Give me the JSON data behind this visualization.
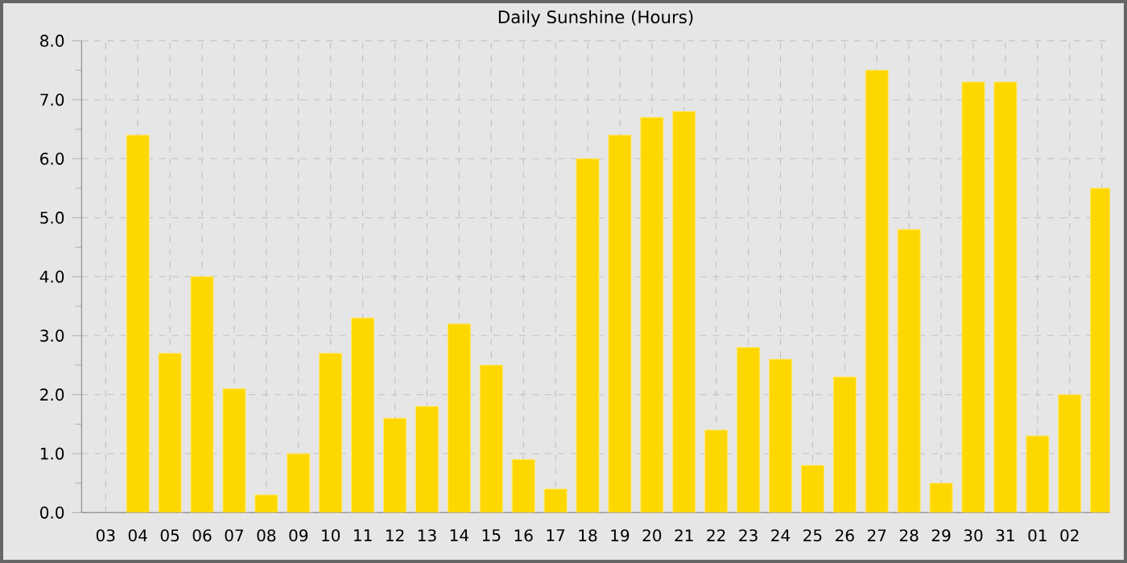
{
  "chart_data": {
    "type": "bar",
    "title": "Daily Sunshine (Hours)",
    "categories": [
      "03",
      "04",
      "05",
      "06",
      "07",
      "08",
      "09",
      "10",
      "11",
      "12",
      "13",
      "14",
      "15",
      "16",
      "17",
      "18",
      "19",
      "20",
      "21",
      "22",
      "23",
      "24",
      "25",
      "26",
      "27",
      "28",
      "29",
      "30",
      "31",
      "01",
      "02",
      null
    ],
    "values": [
      null,
      6.4,
      2.7,
      4.0,
      2.1,
      0.3,
      1.0,
      2.7,
      3.3,
      1.6,
      1.8,
      3.2,
      2.5,
      0.9,
      0.4,
      6.0,
      6.4,
      6.7,
      6.8,
      1.4,
      2.8,
      2.6,
      0.8,
      2.3,
      7.5,
      4.8,
      0.5,
      7.3,
      7.3,
      1.3,
      2.0,
      5.5
    ],
    "color": "#ffd700",
    "ylim": [
      0,
      8
    ],
    "yticks": [
      {
        "value": 0,
        "label": "0.0"
      },
      {
        "value": 1,
        "label": "1.0"
      },
      {
        "value": 2,
        "label": "2.0"
      },
      {
        "value": 3,
        "label": "3.0"
      },
      {
        "value": 4,
        "label": "4.0"
      },
      {
        "value": 5,
        "label": "5.0"
      },
      {
        "value": 6,
        "label": "6.0"
      },
      {
        "value": 7,
        "label": "7.0"
      },
      {
        "value": 8,
        "label": "8.0"
      }
    ],
    "grid": true
  }
}
